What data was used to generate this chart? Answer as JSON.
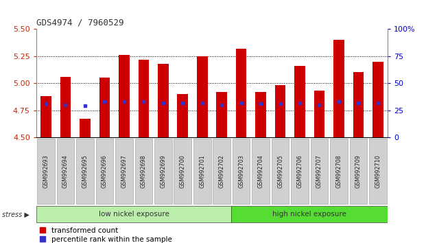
{
  "title": "GDS4974 / 7960529",
  "samples": [
    "GSM992693",
    "GSM992694",
    "GSM992695",
    "GSM992696",
    "GSM992697",
    "GSM992698",
    "GSM992699",
    "GSM992700",
    "GSM992701",
    "GSM992702",
    "GSM992703",
    "GSM992704",
    "GSM992705",
    "GSM992706",
    "GSM992707",
    "GSM992708",
    "GSM992709",
    "GSM992710"
  ],
  "bar_values": [
    4.88,
    5.06,
    4.67,
    5.05,
    5.26,
    5.22,
    5.18,
    4.9,
    5.25,
    4.92,
    5.32,
    4.92,
    4.98,
    5.16,
    4.93,
    5.4,
    5.1,
    5.2
  ],
  "percentile_values": [
    4.81,
    4.8,
    4.79,
    4.83,
    4.83,
    4.83,
    4.82,
    4.82,
    4.82,
    4.8,
    4.82,
    4.81,
    4.81,
    4.82,
    4.8,
    4.83,
    4.82,
    4.82
  ],
  "ylim_left": [
    4.5,
    5.5
  ],
  "ylim_right": [
    0,
    100
  ],
  "yticks_left": [
    4.5,
    4.75,
    5.0,
    5.25,
    5.5
  ],
  "yticks_right": [
    0,
    25,
    50,
    75,
    100
  ],
  "ytick_labels_right": [
    "0",
    "25",
    "50",
    "75",
    "100%"
  ],
  "bar_color": "#cc0000",
  "percentile_color": "#3333cc",
  "grid_levels": [
    4.75,
    5.0,
    5.25
  ],
  "low_nickel_count": 10,
  "group_labels": [
    "low nickel exposure",
    "high nickel exposure"
  ],
  "low_color": "#bbeeaa",
  "high_color": "#55dd33",
  "stress_label": "stress",
  "arrow": "▶",
  "legend_bar": "transformed count",
  "legend_pct": "percentile rank within the sample",
  "left_axis_color": "#cc2200",
  "right_axis_color": "#0000cc",
  "background_color": "#ffffff",
  "bar_width": 0.55,
  "tick_bg_color": "#cccccc",
  "tick_bg_color2": "#bbbbbb"
}
